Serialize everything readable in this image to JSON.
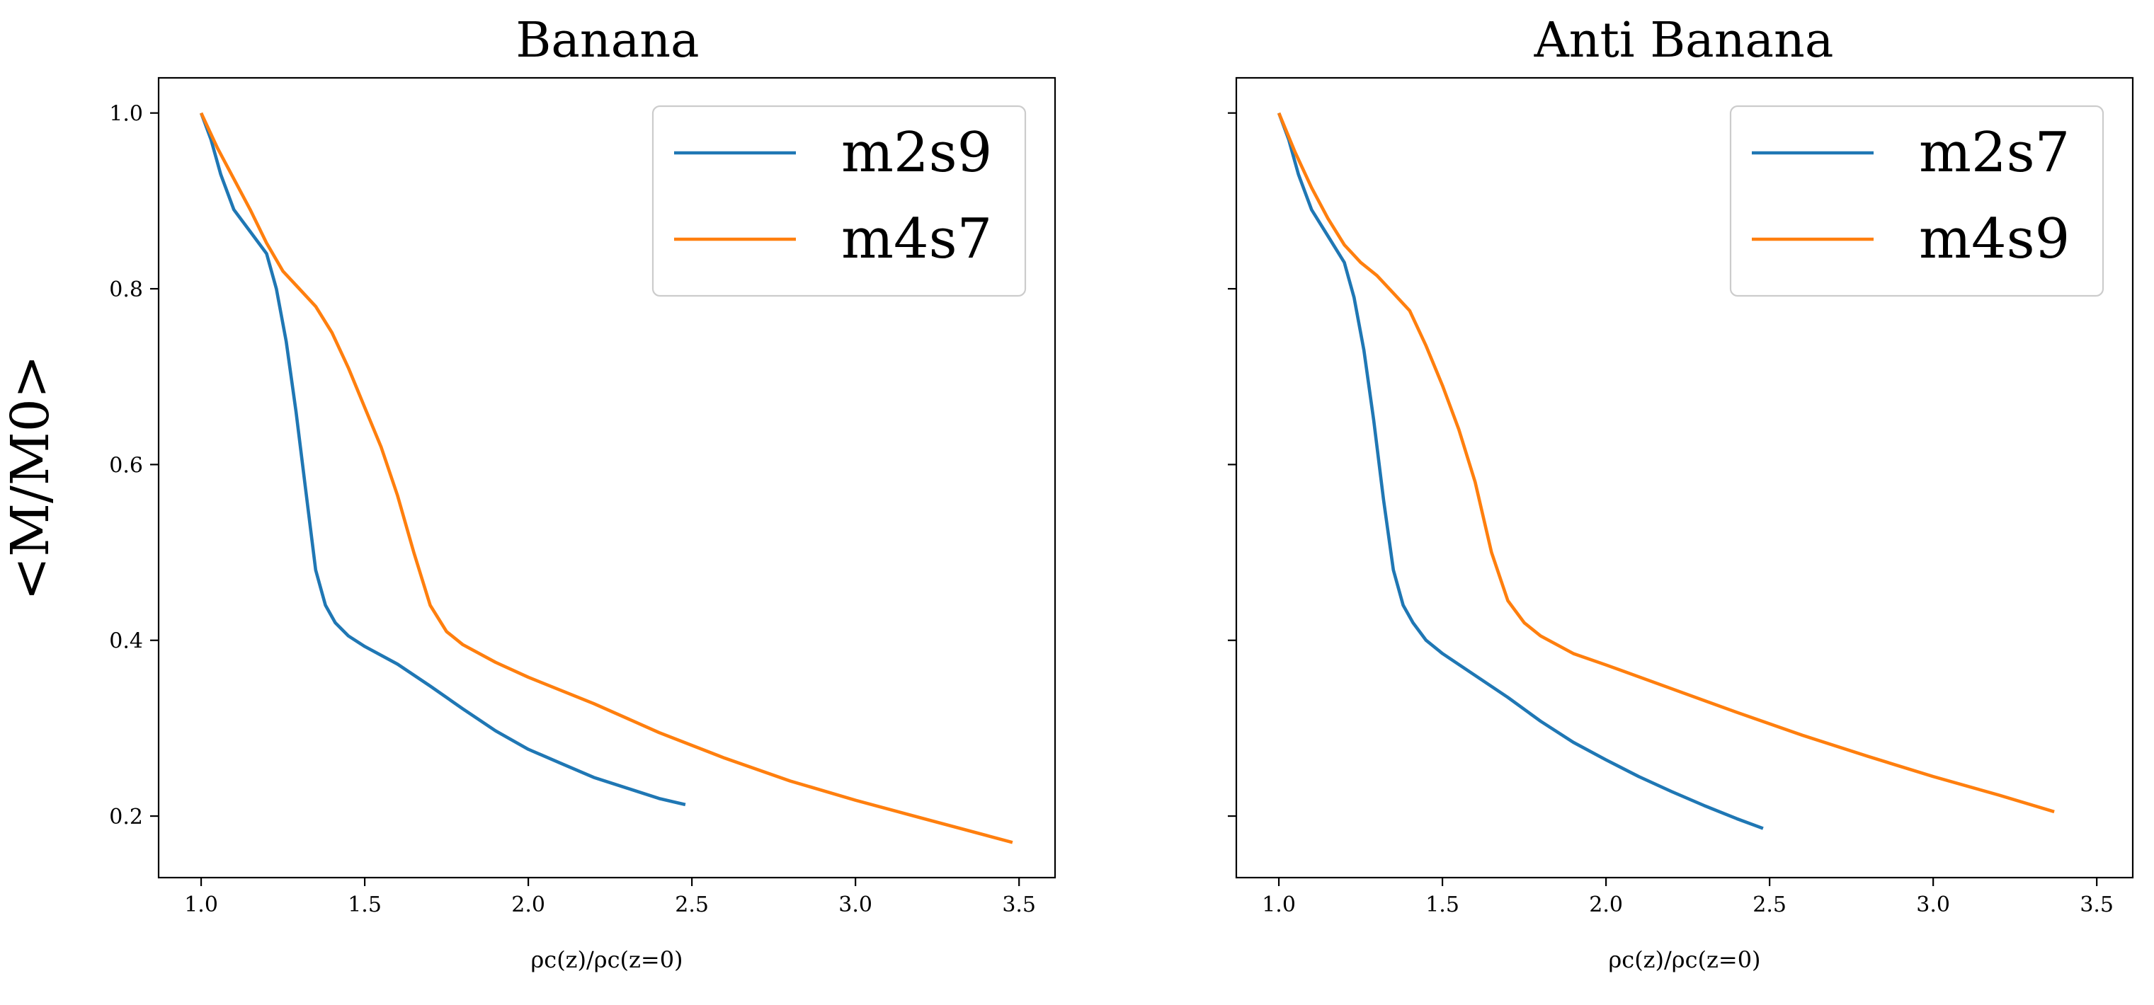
{
  "chart_data": [
    {
      "type": "line",
      "title": "Banana",
      "xlabel": "ρc(z)/ρc(z=0)",
      "ylabel": "<M/M0>",
      "xlim": [
        0.87,
        3.61
      ],
      "ylim": [
        0.13,
        1.04
      ],
      "xticks": [
        "1.0",
        "1.5",
        "2.0",
        "2.5",
        "3.0",
        "3.5"
      ],
      "yticks": [
        "0.2",
        "0.4",
        "0.6",
        "0.8",
        "1.0"
      ],
      "legend_position": "top-right",
      "series": [
        {
          "name": "m2s9",
          "color": "#1f77b4",
          "x": [
            1.0,
            1.03,
            1.06,
            1.1,
            1.15,
            1.2,
            1.23,
            1.26,
            1.29,
            1.32,
            1.35,
            1.38,
            1.41,
            1.45,
            1.5,
            1.6,
            1.7,
            1.8,
            1.9,
            2.0,
            2.1,
            2.2,
            2.3,
            2.4,
            2.48
          ],
          "y": [
            1.0,
            0.97,
            0.93,
            0.89,
            0.865,
            0.84,
            0.8,
            0.74,
            0.66,
            0.57,
            0.48,
            0.44,
            0.42,
            0.405,
            0.393,
            0.373,
            0.348,
            0.322,
            0.297,
            0.276,
            0.26,
            0.244,
            0.232,
            0.22,
            0.213
          ]
        },
        {
          "name": "m4s7",
          "color": "#ff7f0e",
          "x": [
            1.0,
            1.05,
            1.1,
            1.15,
            1.2,
            1.25,
            1.3,
            1.35,
            1.4,
            1.45,
            1.5,
            1.55,
            1.6,
            1.65,
            1.7,
            1.75,
            1.8,
            1.9,
            2.0,
            2.2,
            2.4,
            2.6,
            2.8,
            3.0,
            3.2,
            3.4,
            3.48
          ],
          "y": [
            1.0,
            0.96,
            0.925,
            0.89,
            0.852,
            0.82,
            0.8,
            0.78,
            0.75,
            0.71,
            0.665,
            0.62,
            0.565,
            0.5,
            0.44,
            0.41,
            0.395,
            0.375,
            0.358,
            0.328,
            0.295,
            0.266,
            0.24,
            0.218,
            0.198,
            0.178,
            0.17
          ]
        }
      ]
    },
    {
      "type": "line",
      "title": "Anti Banana",
      "xlabel": "ρc(z)/ρc(z=0)",
      "ylabel": "",
      "xlim": [
        0.87,
        3.61
      ],
      "ylim": [
        0.13,
        1.04
      ],
      "xticks": [
        "1.0",
        "1.5",
        "2.0",
        "2.5",
        "3.0",
        "3.5"
      ],
      "yticks": [
        "",
        "",
        "",
        "",
        ""
      ],
      "legend_position": "top-right",
      "series": [
        {
          "name": "m2s7",
          "color": "#1f77b4",
          "x": [
            1.0,
            1.03,
            1.06,
            1.1,
            1.15,
            1.2,
            1.23,
            1.26,
            1.29,
            1.32,
            1.35,
            1.38,
            1.41,
            1.45,
            1.5,
            1.6,
            1.7,
            1.8,
            1.9,
            2.0,
            2.1,
            2.2,
            2.3,
            2.4,
            2.48
          ],
          "y": [
            1.0,
            0.97,
            0.93,
            0.89,
            0.86,
            0.83,
            0.79,
            0.73,
            0.65,
            0.56,
            0.48,
            0.44,
            0.42,
            0.4,
            0.385,
            0.36,
            0.335,
            0.308,
            0.284,
            0.264,
            0.245,
            0.228,
            0.212,
            0.197,
            0.186
          ]
        },
        {
          "name": "m4s9",
          "color": "#ff7f0e",
          "x": [
            1.0,
            1.05,
            1.1,
            1.15,
            1.2,
            1.25,
            1.3,
            1.35,
            1.4,
            1.45,
            1.5,
            1.55,
            1.6,
            1.65,
            1.7,
            1.75,
            1.8,
            1.9,
            2.0,
            2.2,
            2.4,
            2.6,
            2.8,
            3.0,
            3.2,
            3.37
          ],
          "y": [
            1.0,
            0.955,
            0.915,
            0.88,
            0.85,
            0.83,
            0.815,
            0.795,
            0.775,
            0.735,
            0.69,
            0.64,
            0.58,
            0.5,
            0.445,
            0.42,
            0.405,
            0.385,
            0.372,
            0.345,
            0.318,
            0.292,
            0.268,
            0.245,
            0.224,
            0.205
          ]
        }
      ]
    }
  ]
}
